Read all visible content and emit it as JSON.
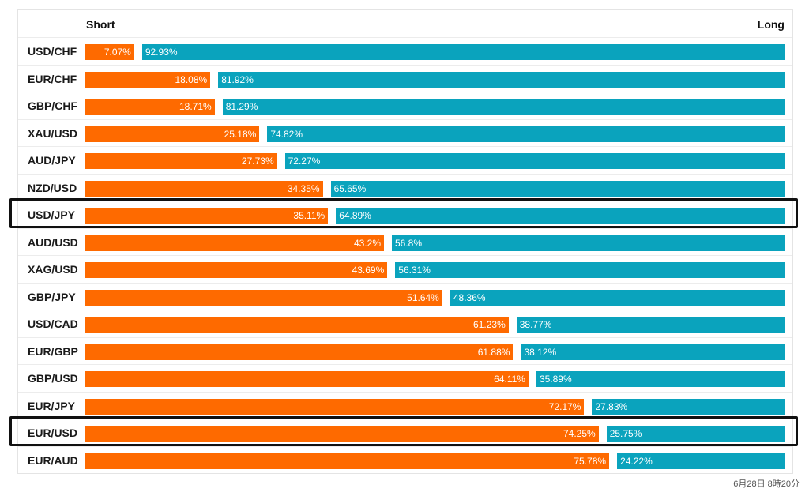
{
  "chart_data": {
    "type": "bar",
    "orientation": "horizontal-stacked",
    "header_short": "Short",
    "header_long": "Long",
    "series": [
      {
        "name": "Short",
        "color": "#fe6a00"
      },
      {
        "name": "Long",
        "color": "#0aa3bd"
      }
    ],
    "rows": [
      {
        "pair": "USD/CHF",
        "short": 7.07,
        "long": 92.93,
        "short_label": "7.07%",
        "long_label": "92.93%",
        "highlighted": false
      },
      {
        "pair": "EUR/CHF",
        "short": 18.08,
        "long": 81.92,
        "short_label": "18.08%",
        "long_label": "81.92%",
        "highlighted": false
      },
      {
        "pair": "GBP/CHF",
        "short": 18.71,
        "long": 81.29,
        "short_label": "18.71%",
        "long_label": "81.29%",
        "highlighted": false
      },
      {
        "pair": "XAU/USD",
        "short": 25.18,
        "long": 74.82,
        "short_label": "25.18%",
        "long_label": "74.82%",
        "highlighted": false
      },
      {
        "pair": "AUD/JPY",
        "short": 27.73,
        "long": 72.27,
        "short_label": "27.73%",
        "long_label": "72.27%",
        "highlighted": false
      },
      {
        "pair": "NZD/USD",
        "short": 34.35,
        "long": 65.65,
        "short_label": "34.35%",
        "long_label": "65.65%",
        "highlighted": false
      },
      {
        "pair": "USD/JPY",
        "short": 35.11,
        "long": 64.89,
        "short_label": "35.11%",
        "long_label": "64.89%",
        "highlighted": true
      },
      {
        "pair": "AUD/USD",
        "short": 43.2,
        "long": 56.8,
        "short_label": "43.2%",
        "long_label": "56.8%",
        "highlighted": false
      },
      {
        "pair": "XAG/USD",
        "short": 43.69,
        "long": 56.31,
        "short_label": "43.69%",
        "long_label": "56.31%",
        "highlighted": false
      },
      {
        "pair": "GBP/JPY",
        "short": 51.64,
        "long": 48.36,
        "short_label": "51.64%",
        "long_label": "48.36%",
        "highlighted": false
      },
      {
        "pair": "USD/CAD",
        "short": 61.23,
        "long": 38.77,
        "short_label": "61.23%",
        "long_label": "38.77%",
        "highlighted": false
      },
      {
        "pair": "EUR/GBP",
        "short": 61.88,
        "long": 38.12,
        "short_label": "61.88%",
        "long_label": "38.12%",
        "highlighted": false
      },
      {
        "pair": "GBP/USD",
        "short": 64.11,
        "long": 35.89,
        "short_label": "64.11%",
        "long_label": "35.89%",
        "highlighted": false
      },
      {
        "pair": "EUR/JPY",
        "short": 72.17,
        "long": 27.83,
        "short_label": "72.17%",
        "long_label": "27.83%",
        "highlighted": false
      },
      {
        "pair": "EUR/USD",
        "short": 74.25,
        "long": 25.75,
        "short_label": "74.25%",
        "long_label": "25.75%",
        "highlighted": true
      },
      {
        "pair": "EUR/AUD",
        "short": 75.78,
        "long": 24.22,
        "short_label": "75.78%",
        "long_label": "24.22%",
        "highlighted": false
      }
    ]
  },
  "timestamp": "6月28日 8時20分"
}
